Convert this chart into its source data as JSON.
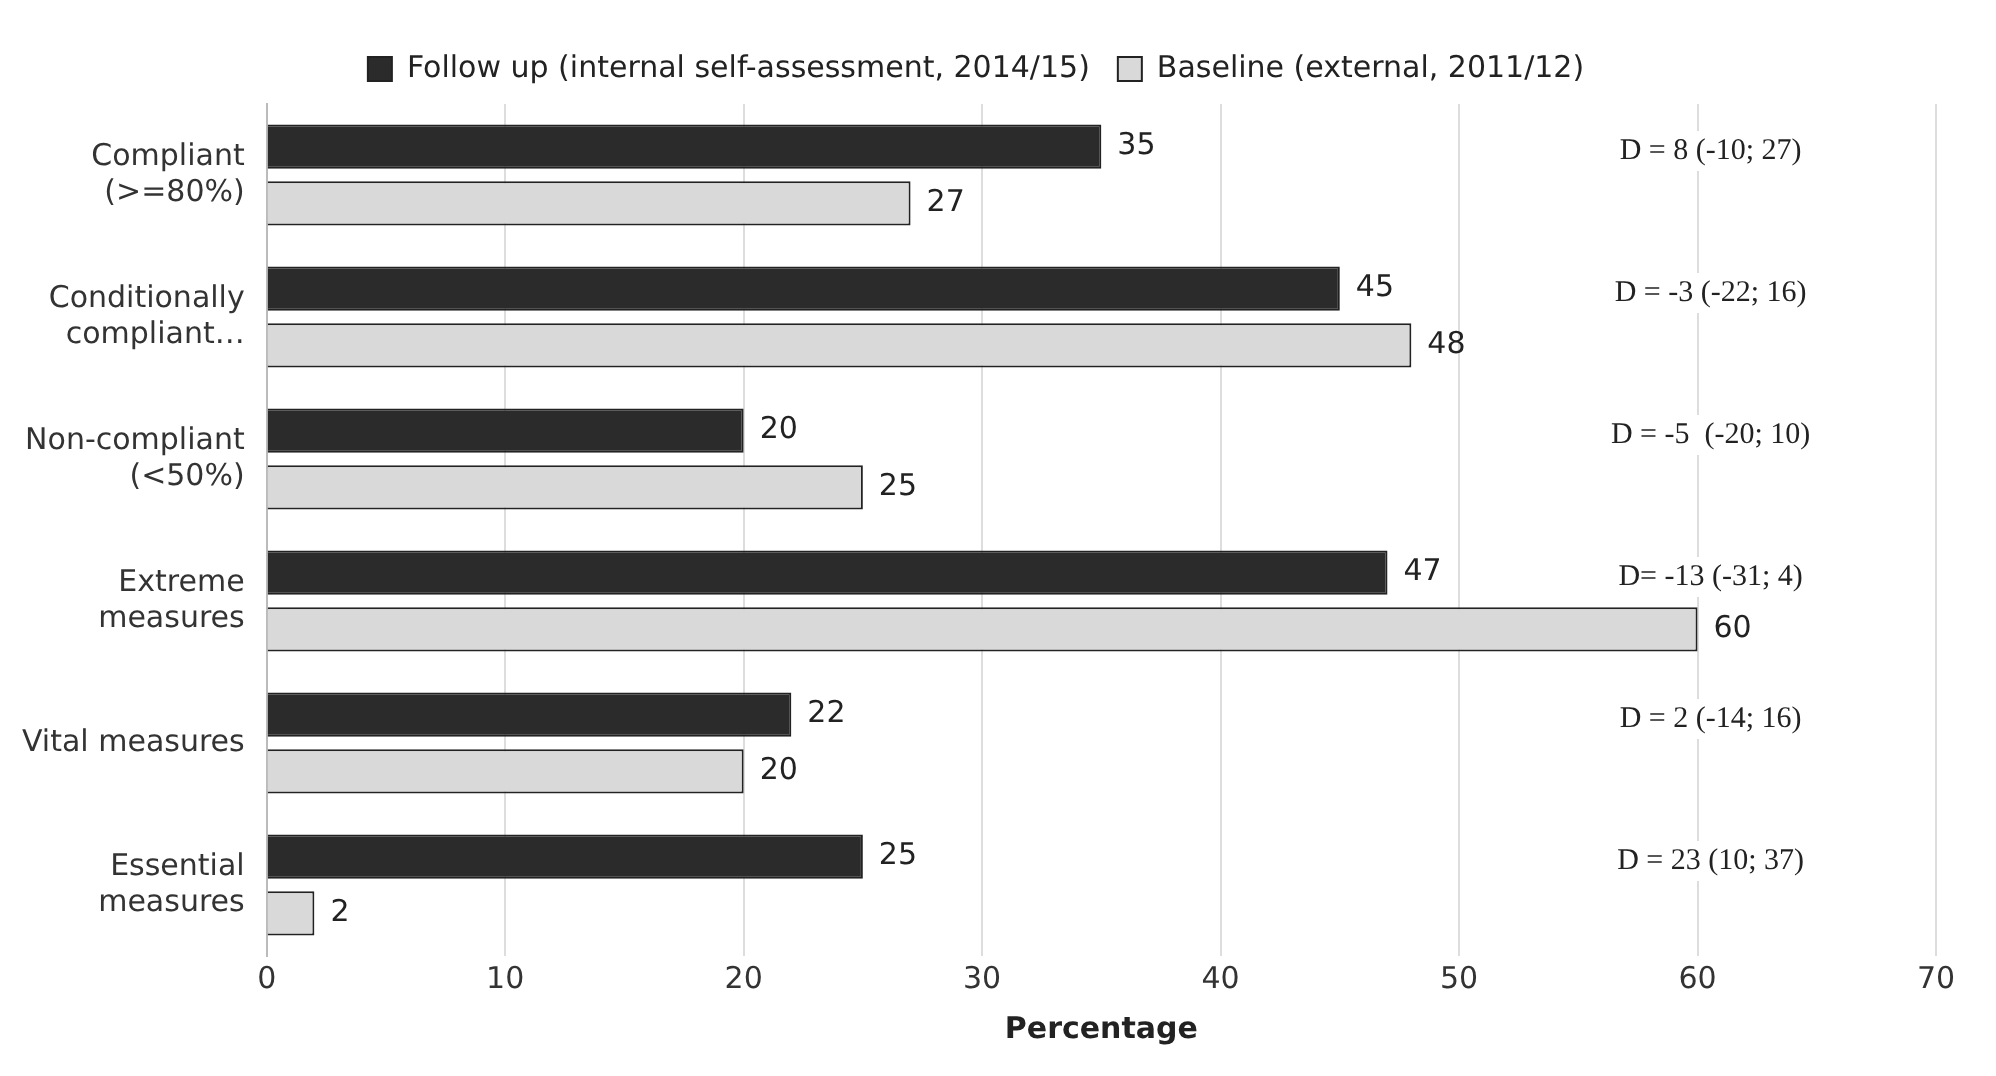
{
  "chart_data": {
    "type": "bar",
    "orientation": "horizontal",
    "xlabel": "Percentage",
    "categories": [
      "Compliant (>=80%)",
      "Conditionally compliant…",
      "Non-compliant (<50%)",
      "Extreme measures",
      "Vital measures",
      "Essential measures"
    ],
    "series": [
      {
        "name": "Follow up (internal self-assessment, 2014/15)",
        "color": "#2b2b2b",
        "values": [
          35,
          45,
          20,
          47,
          22,
          25
        ]
      },
      {
        "name": "Baseline (external, 2011/12)",
        "color": "#d9d9d9",
        "values": [
          27,
          48,
          25,
          60,
          20,
          2
        ]
      }
    ],
    "xlim": [
      0,
      70
    ],
    "xticks": [
      0,
      10,
      20,
      30,
      40,
      50,
      60,
      70
    ],
    "grid": "x",
    "legend": "top",
    "data_labels": true,
    "annotations": [
      "D = 8 (-10; 27)",
      "D = -3 (-22; 16)",
      "D = -5  (-20; 10)",
      "D= -13 (-31; 4)",
      "D = 2 (-14; 16)",
      "D = 23 (10; 37)"
    ]
  }
}
